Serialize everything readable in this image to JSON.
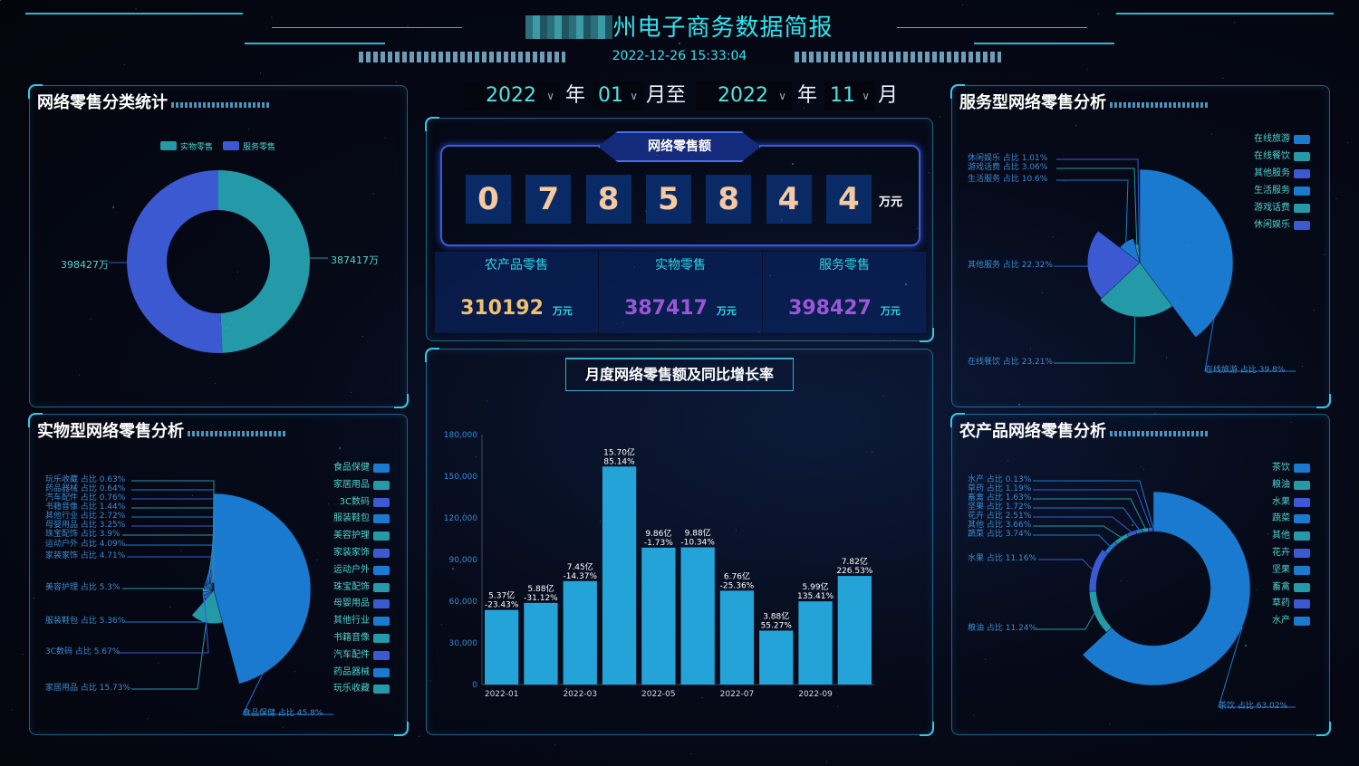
{
  "header": {
    "title": "州电子商务数据简报",
    "datetime": "2022-12-26 15:33:04"
  },
  "date_range": {
    "start_year": "2022",
    "year_label": "年",
    "start_month": "01",
    "month_to_label": "月至",
    "end_year": "2022",
    "end_month": "11",
    "month_label": "月"
  },
  "colors": {
    "blue": "#1a7ad0",
    "teal": "#2499a8",
    "indigo": "#3b59d0",
    "digit": "#f7c9a0",
    "agri_value": "#f0c070",
    "purple_value": "#9b55d8"
  },
  "category_panel": {
    "title": "网络零售分类统计",
    "legend": [
      "实物零售",
      "服务零售"
    ],
    "values": [
      387417,
      398427
    ],
    "labels": [
      "387417万",
      "398427万"
    ]
  },
  "total": {
    "title": "网络零售额",
    "digits": [
      "0",
      "7",
      "8",
      "5",
      "8",
      "4",
      "4"
    ],
    "unit": "万元",
    "subs": [
      {
        "name": "农产品零售",
        "value": "310192",
        "unit": "万元"
      },
      {
        "name": "实物零售",
        "value": "387417",
        "unit": "万元"
      },
      {
        "name": "服务零售",
        "value": "398427",
        "unit": "万元"
      }
    ]
  },
  "physical_panel": {
    "title": "实物型网络零售分析",
    "items": [
      {
        "name": "食品保健",
        "pct": "45.8"
      },
      {
        "name": "家居用品",
        "pct": "15.73"
      },
      {
        "name": "3C数码",
        "pct": "5.67"
      },
      {
        "name": "服装鞋包",
        "pct": "5.36"
      },
      {
        "name": "美容护理",
        "pct": "5.3"
      },
      {
        "name": "家装家饰",
        "pct": "4.71"
      },
      {
        "name": "运动户外",
        "pct": "4.09"
      },
      {
        "name": "珠宝配饰",
        "pct": "3.9"
      },
      {
        "name": "母婴用品",
        "pct": "3.25"
      },
      {
        "name": "其他行业",
        "pct": "2.72"
      },
      {
        "name": "书籍音像",
        "pct": "1.44"
      },
      {
        "name": "汽车配件",
        "pct": "0.76"
      },
      {
        "name": "药品器械",
        "pct": "0.64"
      },
      {
        "name": "玩乐收藏",
        "pct": "0.63"
      }
    ]
  },
  "service_panel": {
    "title": "服务型网络零售分析",
    "items": [
      {
        "name": "在线旅游",
        "pct": "39.8"
      },
      {
        "name": "在线餐饮",
        "pct": "23.21"
      },
      {
        "name": "其他服务",
        "pct": "22.32"
      },
      {
        "name": "生活服务",
        "pct": "10.6"
      },
      {
        "name": "游戏话费",
        "pct": "3.06"
      },
      {
        "name": "休闲娱乐",
        "pct": "1.01"
      }
    ]
  },
  "agri_panel": {
    "title": "农产品网络零售分析",
    "items": [
      {
        "name": "茶饮",
        "pct": "63.02"
      },
      {
        "name": "粮油",
        "pct": "11.24"
      },
      {
        "name": "水果",
        "pct": "11.16"
      },
      {
        "name": "蔬菜",
        "pct": "3.74"
      },
      {
        "name": "其他",
        "pct": "3.66"
      },
      {
        "name": "花卉",
        "pct": "2.51"
      },
      {
        "name": "坚果",
        "pct": "1.72"
      },
      {
        "name": "畜禽",
        "pct": "1.63"
      },
      {
        "name": "草药",
        "pct": "1.19"
      },
      {
        "name": "水产",
        "pct": "0.13"
      }
    ]
  },
  "chart_data": {
    "type": "bar",
    "title": "月度网络零售额及同比增长率",
    "ylim": [
      0,
      180000
    ],
    "yticks": [
      "0",
      "30,000",
      "60,000",
      "90,000",
      "120,000",
      "150,000",
      "180,000"
    ],
    "categories": [
      "2022-01",
      "2022-02",
      "2022-03",
      "2022-04",
      "2022-05",
      "2022-06",
      "2022-07",
      "2022-08",
      "2022-09",
      "2022-10"
    ],
    "xtick_labels": [
      "2022-01",
      "2022-03",
      "2022-05",
      "2022-07",
      "2022-09"
    ],
    "values": [
      53700,
      58800,
      74500,
      157000,
      98600,
      98800,
      67600,
      38800,
      59900,
      78200
    ],
    "value_labels": [
      "5.37亿",
      "5.88亿",
      "7.45亿",
      "15.70亿",
      "9.86亿",
      "9.88亿",
      "6.76亿",
      "3.88亿",
      "5.99亿",
      "7.82亿"
    ],
    "growth_labels": [
      "-23.43%",
      "-31.12%",
      "-14.37%",
      "85.14%",
      "-1.73%",
      "-10.34%",
      "-25.36%",
      "55.27%",
      "135.41%",
      "226.53%"
    ],
    "bar_color": "#24a3d8",
    "grid": false
  }
}
